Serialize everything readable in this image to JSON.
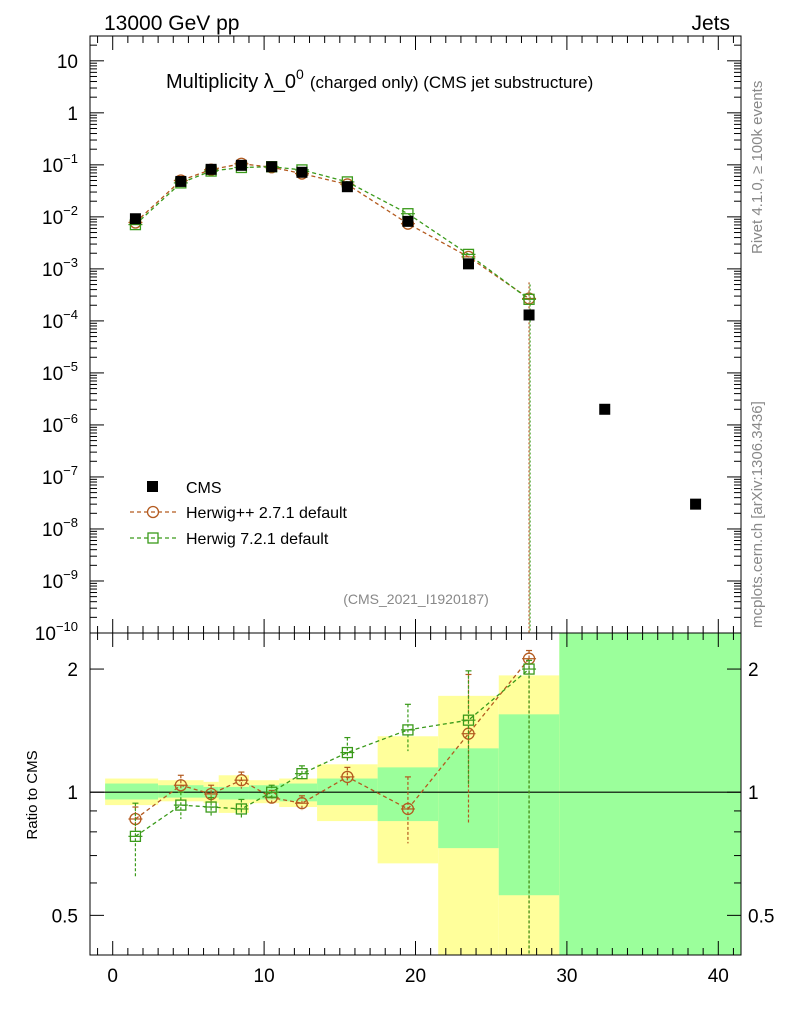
{
  "header": {
    "energy_label": "13000 GeV pp",
    "category_label": "Jets"
  },
  "side_labels": {
    "rivet": "Rivet 4.1.0, ≥ 100k events",
    "mcplots": "mcplots.cern.ch [arXiv:1306.3436]"
  },
  "colors": {
    "data": "#000000",
    "herwigpp": "#b35a1f",
    "herwig7": "#3a9a1a",
    "band_inner": "#9bff9b",
    "band_outer": "#ffff9b"
  },
  "chart_data": [
    {
      "type": "scatter",
      "panel": "main",
      "title_main": "Multiplicity λ_0",
      "title_sup": "0",
      "title_suffix": "(charged only) (CMS jet substructure)",
      "analysis_id": "(CMS_2021_I1920187)",
      "yscale": "log",
      "xlim": [
        -1.5,
        41.5
      ],
      "ylim": [
        1e-10,
        30
      ],
      "y_ticks": [
        {
          "value": 10,
          "label": "10",
          "exp": ""
        },
        {
          "value": 1,
          "label": "1",
          "exp": ""
        },
        {
          "value": 0.1,
          "label": "10",
          "exp": "−1"
        },
        {
          "value": 0.01,
          "label": "10",
          "exp": "−2"
        },
        {
          "value": 0.001,
          "label": "10",
          "exp": "−3"
        },
        {
          "value": 0.0001,
          "label": "10",
          "exp": "−4"
        },
        {
          "value": 1e-05,
          "label": "10",
          "exp": "−5"
        },
        {
          "value": 1e-06,
          "label": "10",
          "exp": "−6"
        },
        {
          "value": 1e-07,
          "label": "10",
          "exp": "−7"
        },
        {
          "value": 1e-08,
          "label": "10",
          "exp": "−8"
        },
        {
          "value": 1e-09,
          "label": "10",
          "exp": "−9"
        },
        {
          "value": 1e-10,
          "label": "10",
          "exp": "−10"
        }
      ],
      "legend": {
        "position": "lower-left",
        "entries": [
          "CMS",
          "Herwig++ 2.7.1 default",
          "Herwig 7.2.1 default"
        ]
      },
      "series": [
        {
          "name": "CMS",
          "marker": "filled-square",
          "x": [
            1.5,
            4.5,
            6.5,
            8.5,
            10.5,
            12.5,
            15.5,
            19.5,
            23.5,
            27.5,
            32.5,
            38.5
          ],
          "y": [
            0.0092,
            0.048,
            0.082,
            0.098,
            0.092,
            0.072,
            0.038,
            0.0082,
            0.00125,
            0.00013,
            2e-06,
            3e-08
          ]
        },
        {
          "name": "Herwig++ 2.7.1 default",
          "marker": "open-circle",
          "x": [
            1.5,
            4.5,
            6.5,
            8.5,
            10.5,
            12.5,
            15.5,
            19.5,
            23.5,
            27.5
          ],
          "y": [
            0.0078,
            0.05,
            0.081,
            0.105,
            0.09,
            0.068,
            0.042,
            0.0074,
            0.0017,
            0.00027
          ]
        },
        {
          "name": "Herwig 7.2.1 default",
          "marker": "open-square",
          "x": [
            1.5,
            4.5,
            6.5,
            8.5,
            10.5,
            12.5,
            15.5,
            19.5,
            23.5,
            27.5
          ],
          "y": [
            0.0071,
            0.045,
            0.076,
            0.089,
            0.092,
            0.08,
            0.047,
            0.0115,
            0.0019,
            0.00026
          ]
        }
      ]
    },
    {
      "type": "scatter",
      "panel": "ratio",
      "ylabel": "Ratio to CMS",
      "yscale": "log",
      "xlim": [
        -1.5,
        41.5
      ],
      "ylim": [
        0.4,
        2.45
      ],
      "x_ticks": [
        0,
        10,
        20,
        30,
        40
      ],
      "y_ticks": [
        0.5,
        1,
        2
      ],
      "reference_line": 1,
      "bands": [
        {
          "x0": -0.5,
          "x1": 3,
          "inner": [
            0.96,
            1.05
          ],
          "outer": [
            0.93,
            1.08
          ]
        },
        {
          "x0": 3,
          "x1": 6,
          "inner": [
            0.97,
            1.04
          ],
          "outer": [
            0.95,
            1.07
          ]
        },
        {
          "x0": 6,
          "x1": 7,
          "inner": [
            0.97,
            1.03
          ],
          "outer": [
            0.94,
            1.06
          ]
        },
        {
          "x0": 7,
          "x1": 9,
          "inner": [
            0.96,
            1.03
          ],
          "outer": [
            0.89,
            1.1
          ]
        },
        {
          "x0": 9,
          "x1": 11,
          "inner": [
            0.96,
            1.04
          ],
          "outer": [
            0.94,
            1.07
          ]
        },
        {
          "x0": 11,
          "x1": 13.5,
          "inner": [
            0.95,
            1.05
          ],
          "outer": [
            0.92,
            1.08
          ]
        },
        {
          "x0": 13.5,
          "x1": 17.5,
          "inner": [
            0.93,
            1.08
          ],
          "outer": [
            0.85,
            1.17
          ]
        },
        {
          "x0": 17.5,
          "x1": 21.5,
          "inner": [
            0.85,
            1.15
          ],
          "outer": [
            0.67,
            1.37
          ]
        },
        {
          "x0": 21.5,
          "x1": 25.5,
          "inner": [
            0.73,
            1.28
          ],
          "outer": [
            0.35,
            1.72
          ]
        },
        {
          "x0": 25.5,
          "x1": 29.5,
          "inner": [
            0.56,
            1.55
          ],
          "outer": [
            0.35,
            1.93
          ]
        },
        {
          "x0": 29.5,
          "x1": 41.5,
          "inner": [
            0.35,
            3.0
          ],
          "outer": [
            0.35,
            3.0
          ]
        }
      ],
      "series": [
        {
          "name": "Herwig++ 2.7.1 default",
          "x": [
            1.5,
            4.5,
            6.5,
            8.5,
            10.5,
            12.5,
            15.5,
            19.5,
            23.5,
            27.5
          ],
          "y": [
            0.86,
            1.04,
            0.99,
            1.07,
            0.97,
            0.94,
            1.09,
            0.91,
            1.39,
            2.12
          ],
          "err_lo": [
            0.06,
            0.05,
            0.04,
            0.05,
            0.04,
            0.04,
            0.06,
            0.16,
            0.55,
            2.0
          ],
          "err_hi": [
            0.06,
            0.06,
            0.05,
            0.05,
            0.04,
            0.04,
            0.06,
            0.18,
            0.55,
            0.1
          ]
        },
        {
          "name": "Herwig 7.2.1 default",
          "x": [
            1.5,
            4.5,
            6.5,
            8.5,
            10.5,
            12.5,
            15.5,
            19.5,
            23.5,
            27.5
          ],
          "y": [
            0.78,
            0.93,
            0.92,
            0.91,
            1.0,
            1.11,
            1.25,
            1.42,
            1.5,
            2.0
          ],
          "err_lo": [
            0.16,
            0.07,
            0.05,
            0.05,
            0.04,
            0.04,
            0.06,
            0.16,
            0.46,
            2.0
          ],
          "err_hi": [
            0.16,
            0.07,
            0.05,
            0.05,
            0.04,
            0.05,
            0.11,
            0.22,
            0.48,
            0.1
          ]
        }
      ]
    }
  ]
}
